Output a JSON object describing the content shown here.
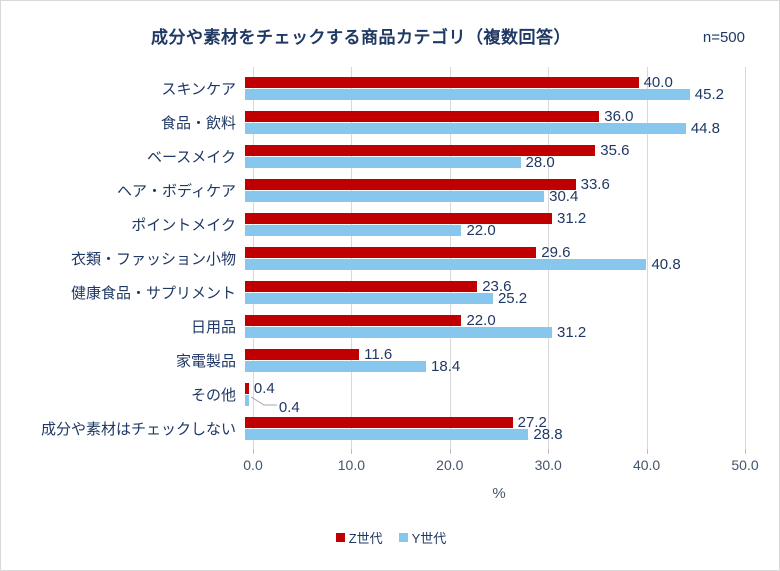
{
  "header": {
    "title": "成分や素材をチェックする商品カテゴリ（複数回答）",
    "n_label": "n=500"
  },
  "chart_data": {
    "type": "bar",
    "orientation": "horizontal",
    "title": "成分や素材をチェックする商品カテゴリ（複数回答）",
    "sample_size": "n=500",
    "categories": [
      "スキンケア",
      "食品・飲料",
      "ベースメイク",
      "ヘア・ボディケア",
      "ポイントメイク",
      "衣類・ファッション小物",
      "健康食品・サプリメント",
      "日用品",
      "家電製品",
      "その他",
      "成分や素材はチェックしない"
    ],
    "series": [
      {
        "name": "Z世代",
        "color": "#C00000",
        "values": [
          40.0,
          36.0,
          35.6,
          33.6,
          31.2,
          29.6,
          23.6,
          22.0,
          11.6,
          0.4,
          27.2
        ]
      },
      {
        "name": "Y世代",
        "color": "#87C7EE",
        "values": [
          45.2,
          44.8,
          28.0,
          30.4,
          22.0,
          40.8,
          25.2,
          31.2,
          18.4,
          0.4,
          28.8
        ]
      }
    ],
    "xlabel": "%",
    "xlim": [
      0,
      50
    ],
    "xtick_interval": 10,
    "xtick_labels": [
      "0.0",
      "10.0",
      "20.0",
      "30.0",
      "40.0",
      "50.0"
    ],
    "value_label_decimals": 1,
    "grid": true,
    "legend_position": "bottom"
  },
  "colors": {
    "text": "#1F3864",
    "axis_text": "#44546A",
    "gridline": "#D9D9D9",
    "leader_line": "#A6A6A6",
    "series_z": "#C00000",
    "series_y": "#87C7EE"
  }
}
